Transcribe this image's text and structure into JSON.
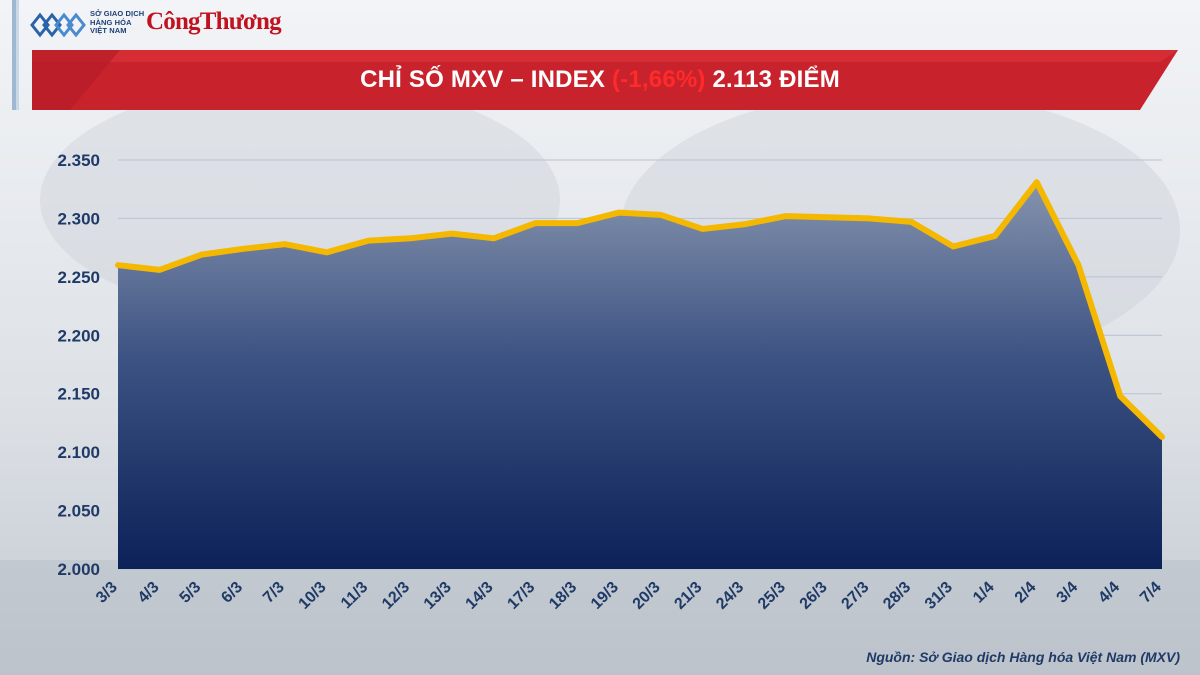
{
  "header": {
    "logo_mxv_line1": "SỞ GIAO DỊCH",
    "logo_mxv_line2": "HÀNG HÓA",
    "logo_mxv_line3": "VIỆT NAM",
    "logo_congthuong": "CôngThương"
  },
  "chart_data": {
    "type": "area",
    "title_main": "CHỈ SỐ MXV – INDEX",
    "title_change": "(-1,66%)",
    "title_value": "2.113 ĐIỂM",
    "categories": [
      "3/3",
      "4/3",
      "5/3",
      "6/3",
      "7/3",
      "10/3",
      "11/3",
      "12/3",
      "13/3",
      "14/3",
      "17/3",
      "18/3",
      "19/3",
      "20/3",
      "21/3",
      "24/3",
      "25/3",
      "26/3",
      "27/3",
      "28/3",
      "31/3",
      "1/4",
      "2/4",
      "3/4",
      "4/4",
      "7/4"
    ],
    "values": [
      2260,
      2256,
      2269,
      2274,
      2278,
      2271,
      2281,
      2283,
      2287,
      2283,
      2296,
      2296,
      2305,
      2303,
      2291,
      2295,
      2302,
      2301,
      2300,
      2297,
      2276,
      2285,
      2331,
      2260,
      2148,
      2113
    ],
    "ylim": [
      2000,
      2350
    ],
    "yticks": [
      2000,
      2050,
      2100,
      2150,
      2200,
      2250,
      2300,
      2350
    ],
    "ytick_labels": [
      "2.000",
      "2.050",
      "2.100",
      "2.150",
      "2.200",
      "2.250",
      "2.300",
      "2.350"
    ],
    "grid": true,
    "colors": {
      "line": "#f5b800",
      "fill_top": "#8593ad",
      "fill_bottom": "#0b2158",
      "banner": "#c8232c",
      "tick_label": "#1f3a66",
      "gridline": "#b8c2d2"
    }
  },
  "footer": {
    "source": "Nguồn: Sở Giao dịch Hàng hóa Việt Nam (MXV)"
  }
}
